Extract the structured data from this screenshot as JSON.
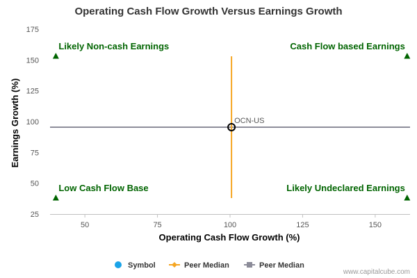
{
  "chart_data": {
    "type": "scatter",
    "title": "Operating Cash Flow Growth Versus Earnings Growth",
    "xlabel": "Operating Cash Flow Growth (%)",
    "ylabel": "Earnings Growth (%)",
    "xlim": [
      38,
      162
    ],
    "ylim": [
      25,
      175
    ],
    "x_ticks": [
      50,
      75,
      100,
      125,
      150
    ],
    "y_ticks": [
      25,
      50,
      75,
      100,
      125,
      150,
      175
    ],
    "symbol": {
      "label": "OCN-US",
      "x": 100.5,
      "y": 95.5
    },
    "peer_median_vertical": {
      "x": 100.5,
      "y_range": [
        38,
        153
      ]
    },
    "peer_median_horizontal": {
      "y": 95.5,
      "x_range": [
        38,
        162
      ]
    },
    "quadrants": [
      {
        "label": "Likely Non-cash Earnings",
        "position": "top-left",
        "marker_x": 40,
        "marker_y": 153
      },
      {
        "label": "Cash Flow based Earnings",
        "position": "top-right",
        "marker_x": 161,
        "marker_y": 153
      },
      {
        "label": "Low Cash Flow Base",
        "position": "bottom-left",
        "marker_x": 40,
        "marker_y": 38
      },
      {
        "label": "Likely Undeclared Earnings",
        "position": "bottom-right",
        "marker_x": 161,
        "marker_y": 38
      }
    ],
    "legend": [
      {
        "label": "Symbol",
        "color": "#1aa3e8",
        "kind": "dot"
      },
      {
        "label": "Peer Median",
        "color": "#f5a623",
        "kind": "diamond-line"
      },
      {
        "label": "Peer Median",
        "color": "#8c8c99",
        "kind": "square-line"
      }
    ],
    "credit": "www.capitalcube.com",
    "colors": {
      "quadrant_text": "#006400",
      "vertical_line": "#f5a623",
      "horizontal_line": "#8c8c99",
      "marker": "#000000"
    }
  }
}
